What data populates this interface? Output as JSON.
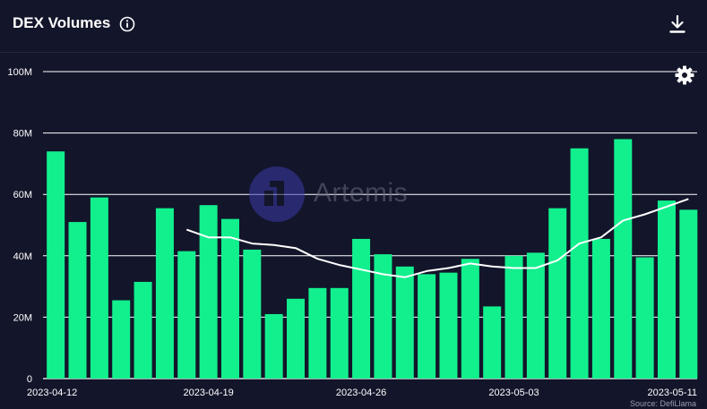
{
  "header": {
    "title": "DEX Volumes"
  },
  "watermark": {
    "text": "Artemis"
  },
  "source": {
    "text": "Source: DefiLlama"
  },
  "icons": {
    "info": "info-icon",
    "download": "download-icon",
    "settings": "gear-icon"
  },
  "colors": {
    "background": "#13152a",
    "bar": "#12f08e",
    "line": "#ffffff",
    "grid": "#ffffff"
  },
  "chart_data": {
    "type": "bar",
    "title": "DEX Volumes",
    "xlabel": "",
    "ylabel": "",
    "ylim": [
      0,
      100000000
    ],
    "y_ticks": [
      0,
      20000000,
      40000000,
      60000000,
      80000000,
      100000000
    ],
    "y_tick_labels": [
      "0",
      "20M",
      "40M",
      "60M",
      "80M",
      "100M"
    ],
    "x_tick_labels": [
      "2023-04-12",
      "2023-04-19",
      "2023-04-26",
      "2023-05-03",
      "2023-05-11"
    ],
    "grid": true,
    "categories": [
      "2023-04-12",
      "2023-04-13",
      "2023-04-14",
      "2023-04-15",
      "2023-04-16",
      "2023-04-17",
      "2023-04-18",
      "2023-04-19",
      "2023-04-20",
      "2023-04-21",
      "2023-04-22",
      "2023-04-23",
      "2023-04-24",
      "2023-04-25",
      "2023-04-26",
      "2023-04-27",
      "2023-04-28",
      "2023-04-29",
      "2023-04-30",
      "2023-05-01",
      "2023-05-02",
      "2023-05-03",
      "2023-05-04",
      "2023-05-05",
      "2023-05-06",
      "2023-05-07",
      "2023-05-08",
      "2023-05-09",
      "2023-05-10",
      "2023-05-11"
    ],
    "series": [
      {
        "type": "bar",
        "values": [
          74000000,
          51000000,
          59000000,
          25500000,
          31500000,
          55500000,
          41500000,
          56500000,
          52000000,
          42000000,
          21000000,
          26000000,
          29500000,
          29500000,
          45500000,
          40500000,
          36500000,
          34000000,
          34500000,
          39000000,
          23500000,
          40000000,
          41000000,
          55500000,
          75000000,
          45500000,
          78000000,
          39500000,
          58000000,
          55000000
        ]
      },
      {
        "type": "line",
        "values": [
          null,
          null,
          null,
          null,
          null,
          null,
          48500000,
          46000000,
          46000000,
          44000000,
          43500000,
          42500000,
          39000000,
          37000000,
          35500000,
          34000000,
          33000000,
          35000000,
          36000000,
          37500000,
          36500000,
          36000000,
          36000000,
          38500000,
          44000000,
          46000000,
          51500000,
          53500000,
          56000000,
          58500000
        ]
      }
    ]
  }
}
